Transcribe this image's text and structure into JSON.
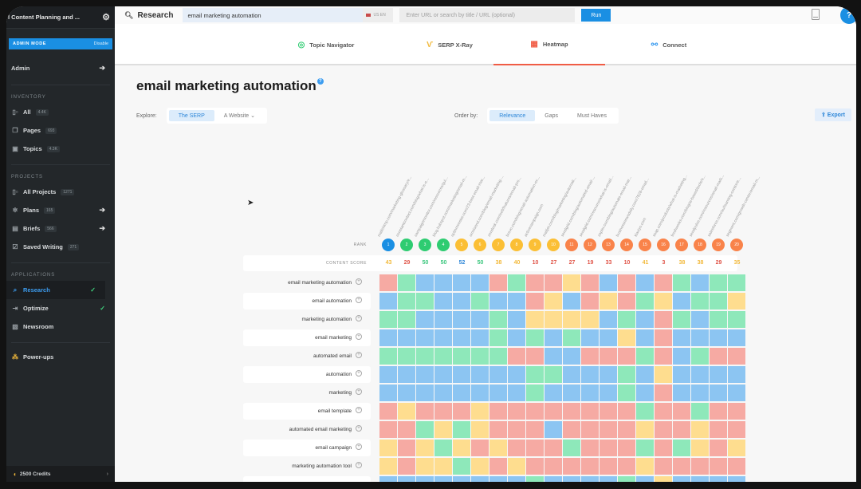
{
  "sidebar": {
    "workspace_title": "l Content Planning and ...",
    "admin_mode": {
      "label": "ADMIN MODE",
      "action": "Disable"
    },
    "admin": {
      "label": "Admin"
    },
    "sections": [
      {
        "heading": "INVENTORY",
        "items": [
          {
            "label": "All",
            "badge": "4.4K",
            "icon": "columns-icon"
          },
          {
            "label": "Pages",
            "badge": "693",
            "icon": "pages-icon"
          },
          {
            "label": "Topics",
            "badge": "4.3K",
            "icon": "topics-icon"
          }
        ]
      },
      {
        "heading": "PROJECTS",
        "items": [
          {
            "label": "All Projects",
            "badge": "1271",
            "icon": "columns-icon"
          },
          {
            "label": "Plans",
            "badge": "165",
            "icon": "plans-icon",
            "arrow": true
          },
          {
            "label": "Briefs",
            "badge": "566",
            "icon": "briefs-icon",
            "arrow": true
          },
          {
            "label": "Saved Writing",
            "badge": "271",
            "icon": "saved-writing-icon"
          }
        ]
      },
      {
        "heading": "APPLICATIONS",
        "items": [
          {
            "label": "Research",
            "active": true,
            "check": true,
            "icon": "search-icon"
          },
          {
            "label": "Optimize",
            "check": true,
            "icon": "optimize-icon"
          },
          {
            "label": "Newsroom",
            "icon": "newsroom-icon"
          }
        ]
      }
    ],
    "powerups": {
      "label": "Power-ups"
    },
    "credits": {
      "label": "2500 Credits"
    }
  },
  "topbar": {
    "title": "Research",
    "query": "email marketing automation",
    "locale": "US EN",
    "url_placeholder": "Enter URL or search by title / URL (optional)",
    "run_label": "Run",
    "help_label": "?"
  },
  "tabs": [
    {
      "label": "Topic Navigator",
      "icon": "topic-navigator-icon",
      "color": "#2ecc71",
      "glyph": "◎"
    },
    {
      "label": "SERP X-Ray",
      "icon": "xray-icon",
      "color": "#f2b93b",
      "glyph": "Ѵ"
    },
    {
      "label": "Heatmap",
      "icon": "heatmap-icon",
      "color": "#f05c45",
      "glyph": "▦",
      "active": true
    },
    {
      "label": "Connect",
      "icon": "connect-icon",
      "color": "#3d9df0",
      "glyph": "⚯"
    }
  ],
  "page": {
    "title": "email marketing automation",
    "info": "?",
    "explore_label": "Explore:",
    "explore_options": [
      {
        "label": "The SERP",
        "on": true
      },
      {
        "label": "A Website ⌄",
        "on": false
      }
    ],
    "order_label": "Order by:",
    "order_options": [
      {
        "label": "Relevance",
        "on": true
      },
      {
        "label": "Gaps",
        "on": false
      },
      {
        "label": "Must Haves",
        "on": false
      }
    ],
    "export_label": "⇪ Export"
  },
  "colors": {
    "red": "#f6aaa3",
    "green": "#8ee8ba",
    "blue": "#8cc5f2",
    "yellow": "#fedd8f",
    "rank_blue": "#1a8fe3",
    "rank_green": "#2ecc71",
    "rank_yellow": "#fbbf35",
    "rank_orange": "#f9834a",
    "score_yellow": "#f2b93b",
    "score_red": "#e0564a",
    "score_green": "#3dc77f",
    "score_blue": "#2c86d8"
  },
  "heatmap": {
    "rank_label": "RANK",
    "score_label": "CONTENT SCORE",
    "urls": [
      "mailchimp.com/marketing-glossary/e...",
      "constantcontact.com/blog/what-is-e...",
      "campaignmonitor.com/resources/gui...",
      "blog.hubspot.com/marketing/email-m...",
      "optinmonster.com/23-best-email-mar...",
      "omnisend.com/blog/email-marketing-...",
      "zendesk.com/sell/features/email-pro...",
      "brevo.com/blog/email-automation-ex...",
      "activecampaign.com",
      "mailjet.com/blog/marketing/automati...",
      "sendgrid.com/blog/automated-email-...",
      "sendgrid.com/resource/what-is-email...",
      "zapier.com/blog/automate-email-mar...",
      "businessnewsdaily.com/7828-email...",
      "klaviyo.com",
      "ssap.com/products/what-is-marketing...",
      "freshworks.com/blog/ai-based/tools/e...",
      "sendpulse.com/resources/email-mark...",
      "salesforce.com/au/learning-centre/e...",
      "segment.com/growth-center/email-m..."
    ],
    "ranks": [
      1,
      2,
      3,
      4,
      5,
      6,
      7,
      8,
      9,
      10,
      11,
      12,
      13,
      14,
      15,
      16,
      17,
      18,
      19,
      20
    ],
    "rank_colors": [
      "rank_blue",
      "rank_green",
      "rank_green",
      "rank_green",
      "rank_yellow",
      "rank_yellow",
      "rank_yellow",
      "rank_yellow",
      "rank_yellow",
      "rank_yellow",
      "rank_orange",
      "rank_orange",
      "rank_orange",
      "rank_orange",
      "rank_orange",
      "rank_orange",
      "rank_orange",
      "rank_orange",
      "rank_orange",
      "rank_orange"
    ],
    "scores": [
      43,
      29,
      50,
      50,
      52,
      50,
      38,
      40,
      10,
      27,
      27,
      19,
      33,
      10,
      41,
      3,
      38,
      38,
      29,
      35
    ],
    "score_colors": [
      "score_yellow",
      "score_red",
      "score_green",
      "score_green",
      "score_blue",
      "score_green",
      "score_yellow",
      "score_yellow",
      "score_red",
      "score_red",
      "score_red",
      "score_red",
      "score_red",
      "score_red",
      "score_yellow",
      "score_red",
      "score_yellow",
      "score_yellow",
      "score_red",
      "score_yellow"
    ],
    "rows": [
      {
        "keyword": "email marketing automation",
        "cells": "RGBBBBRGRRYRBRBRGBGG"
      },
      {
        "keyword": "email automation",
        "cells": "BGGBBGBBRYBRYRGYBGGY"
      },
      {
        "keyword": "marketing automation",
        "cells": "GGBBBBGBYYYYBGBRGBGG"
      },
      {
        "keyword": "email marketing",
        "cells": "BBBBBBGBGBGBBYBRBBBB"
      },
      {
        "keyword": "automated email",
        "cells": "GGGGGGGRRBBRRRGRBGRR"
      },
      {
        "keyword": "automation",
        "cells": "BBBBBBBBGGBBBGBYBBBB"
      },
      {
        "keyword": "marketing",
        "cells": "BBBBBBBBGBBBBGBRBBBB"
      },
      {
        "keyword": "email template",
        "cells": "RYRRRYRRRRRRRRGRRGRR"
      },
      {
        "keyword": "automated email marketing",
        "cells": "RRGYGYRRRBRRRRYRRYRR"
      },
      {
        "keyword": "email campaign",
        "cells": "YRYGYRYRRRGRRRGRGYRY"
      },
      {
        "keyword": "marketing automation tool",
        "cells": "YRYYGYRYRRRRRRYRRRRR"
      },
      {
        "keyword": "",
        "cells": "BBBBBBBBGBBBBGBYBBBB"
      }
    ]
  }
}
